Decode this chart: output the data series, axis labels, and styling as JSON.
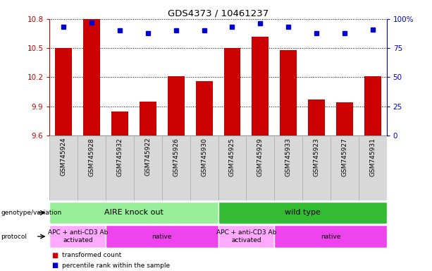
{
  "title": "GDS4373 / 10461237",
  "samples": [
    "GSM745924",
    "GSM745928",
    "GSM745932",
    "GSM745922",
    "GSM745926",
    "GSM745930",
    "GSM745925",
    "GSM745929",
    "GSM745933",
    "GSM745923",
    "GSM745927",
    "GSM745931"
  ],
  "bar_values": [
    10.5,
    10.8,
    9.85,
    9.95,
    10.21,
    10.16,
    10.5,
    10.62,
    10.48,
    9.97,
    9.94,
    10.21
  ],
  "percentile_values": [
    93,
    97,
    90,
    88,
    90,
    90,
    93,
    96,
    93,
    88,
    88,
    91
  ],
  "ymin": 9.6,
  "ymax": 10.8,
  "yticks": [
    9.6,
    9.9,
    10.2,
    10.5,
    10.8
  ],
  "right_yticks": [
    0,
    25,
    50,
    75,
    100
  ],
  "bar_color": "#cc0000",
  "dot_color": "#0000cc",
  "genotype_groups": [
    {
      "label": "AIRE knock out",
      "start": 0,
      "end": 6,
      "color": "#99ee99"
    },
    {
      "label": "wild type",
      "start": 6,
      "end": 12,
      "color": "#33bb33"
    }
  ],
  "protocol_groups": [
    {
      "label": "APC + anti-CD3 Ab\nactivated",
      "start": 0,
      "end": 2,
      "color": "#ffaaff"
    },
    {
      "label": "native",
      "start": 2,
      "end": 6,
      "color": "#ee44ee"
    },
    {
      "label": "APC + anti-CD3 Ab\nactivated",
      "start": 6,
      "end": 8,
      "color": "#ffaaff"
    },
    {
      "label": "native",
      "start": 8,
      "end": 12,
      "color": "#ee44ee"
    }
  ],
  "legend_items": [
    {
      "color": "#cc0000",
      "label": "transformed count"
    },
    {
      "color": "#0000cc",
      "label": "percentile rank within the sample"
    }
  ],
  "left_axis_color": "#cc0000",
  "right_axis_color": "#0000cc",
  "row_label_geno": "genotype/variation",
  "row_label_proto": "protocol",
  "xlabel_bg_color": "#d8d8d8",
  "xlabel_border_color": "#aaaaaa"
}
